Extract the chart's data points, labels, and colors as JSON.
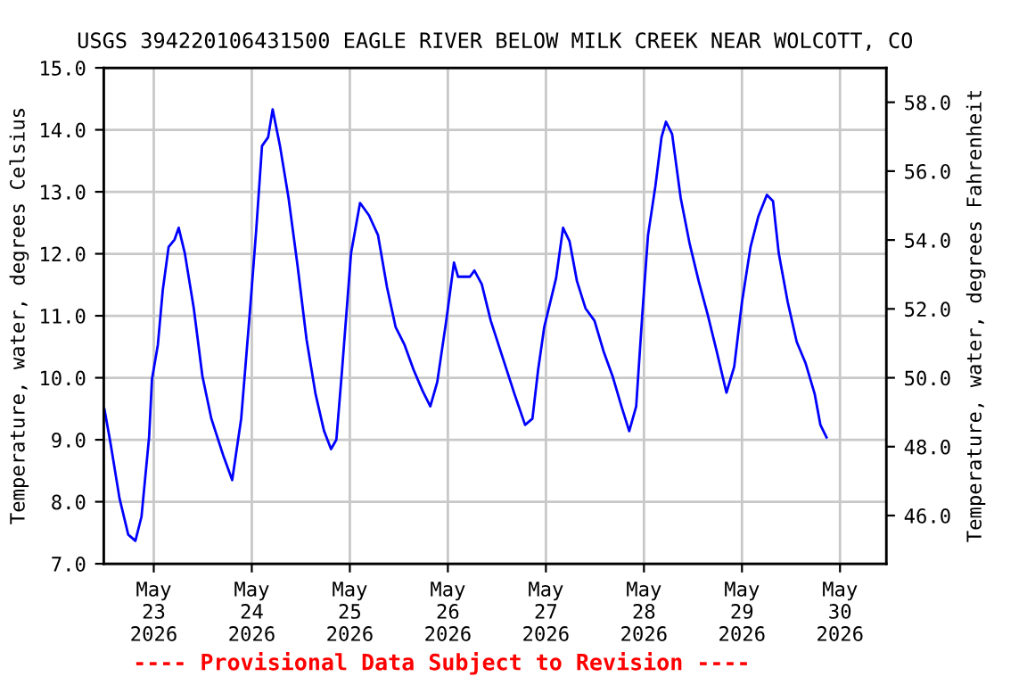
{
  "chart_data": {
    "type": "line",
    "title": "USGS 394220106431500 EAGLE RIVER BELOW MILK CREEK NEAR WOLCOTT, CO",
    "ylabel": "Temperature, water, degrees Celsius",
    "y2label": "Temperature, water, degrees Fahrenheit",
    "annotations": [
      "---- Provisional Data Subject to Revision ----"
    ],
    "x": [
      "2026-05-22T11:56",
      "2026-05-22T13:24",
      "2026-05-22T15:36",
      "2026-05-22T17:45",
      "2026-05-22T19:30",
      "2026-05-22T21:00",
      "2026-05-22T22:51",
      "2026-05-22T23:34",
      "2026-05-23T01:00",
      "2026-05-23T02:12",
      "2026-05-23T03:38",
      "2026-05-23T05:06",
      "2026-05-23T06:06",
      "2026-05-23T07:36",
      "2026-05-23T09:48",
      "2026-05-23T11:54",
      "2026-05-23T14:06",
      "2026-05-23T17:00",
      "2026-05-23T19:12",
      "2026-05-23T21:24",
      "2026-05-23T23:36",
      "2026-05-24T01:06",
      "2026-05-24T02:30",
      "2026-05-24T04:00",
      "2026-05-24T05:06",
      "2026-05-24T06:54",
      "2026-05-24T09:00",
      "2026-05-24T11:12",
      "2026-05-24T13:24",
      "2026-05-24T15:36",
      "2026-05-24T17:42",
      "2026-05-24T19:24",
      "2026-05-24T20:42",
      "2026-05-24T22:06",
      "2026-05-25T00:18",
      "2026-05-25T02:30",
      "2026-05-25T04:42",
      "2026-05-25T06:54",
      "2026-05-25T09:06",
      "2026-05-25T11:12",
      "2026-05-25T13:24",
      "2026-05-25T15:36",
      "2026-05-25T17:48",
      "2026-05-25T19:42",
      "2026-05-25T21:24",
      "2026-05-25T23:36",
      "2026-05-26T01:30",
      "2026-05-26T02:30",
      "2026-05-26T05:24",
      "2026-05-26T06:30",
      "2026-05-26T08:18",
      "2026-05-26T10:30",
      "2026-05-26T13:24",
      "2026-05-26T16:18",
      "2026-05-26T18:54",
      "2026-05-26T20:42",
      "2026-05-26T22:06",
      "2026-05-26T23:36",
      "2026-05-27T02:30",
      "2026-05-27T04:12",
      "2026-05-27T05:48",
      "2026-05-27T07:36",
      "2026-05-27T09:42",
      "2026-05-27T11:54",
      "2026-05-27T14:06",
      "2026-05-27T16:18",
      "2026-05-27T18:30",
      "2026-05-27T20:24",
      "2026-05-27T22:06",
      "2026-05-27T23:36",
      "2026-05-28T01:00",
      "2026-05-28T02:48",
      "2026-05-28T04:18",
      "2026-05-28T05:24",
      "2026-05-28T06:54",
      "2026-05-28T09:00",
      "2026-05-28T11:12",
      "2026-05-28T13:24",
      "2026-05-28T15:36",
      "2026-05-28T17:48",
      "2026-05-28T20:12",
      "2026-05-28T22:06",
      "2026-05-29T00:00",
      "2026-05-29T02:06",
      "2026-05-29T04:00",
      "2026-05-29T06:06",
      "2026-05-29T07:36",
      "2026-05-29T09:00",
      "2026-05-29T11:12",
      "2026-05-29T13:24",
      "2026-05-29T15:36",
      "2026-05-29T17:48",
      "2026-05-29T19:12",
      "2026-05-29T20:42"
    ],
    "series": [
      {
        "color": "#0000ff",
        "values": [
          9.49,
          8.95,
          8.06,
          7.47,
          7.37,
          7.76,
          9.04,
          9.98,
          10.53,
          11.41,
          12.11,
          12.23,
          12.42,
          12.01,
          11.12,
          10.03,
          9.34,
          8.75,
          8.35,
          9.34,
          11.12,
          12.4,
          13.74,
          13.88,
          14.33,
          13.74,
          12.9,
          11.81,
          10.62,
          9.74,
          9.14,
          8.85,
          9.0,
          10.13,
          12.01,
          12.82,
          12.62,
          12.3,
          11.46,
          10.82,
          10.53,
          10.13,
          9.79,
          9.54,
          9.93,
          10.92,
          11.86,
          11.63,
          11.63,
          11.73,
          11.51,
          10.92,
          10.33,
          9.74,
          9.24,
          9.34,
          10.13,
          10.82,
          11.61,
          12.42,
          12.2,
          11.56,
          11.12,
          10.92,
          10.43,
          10.03,
          9.54,
          9.14,
          9.54,
          11.02,
          12.3,
          13.09,
          13.88,
          14.13,
          13.93,
          12.9,
          12.16,
          11.56,
          11.02,
          10.43,
          9.76,
          10.18,
          11.22,
          12.11,
          12.6,
          12.95,
          12.85,
          12.01,
          11.22,
          10.58,
          10.23,
          9.74,
          9.24,
          9.04
        ]
      }
    ],
    "xlim": [
      "2026-05-22T11:45",
      "2026-05-30T11:20"
    ],
    "xticks": [
      {
        "value": "2026-05-23",
        "label": "May\n23\n2026"
      },
      {
        "value": "2026-05-24",
        "label": "May\n24\n2026"
      },
      {
        "value": "2026-05-25",
        "label": "May\n25\n2026"
      },
      {
        "value": "2026-05-26",
        "label": "May\n26\n2026"
      },
      {
        "value": "2026-05-27",
        "label": "May\n27\n2026"
      },
      {
        "value": "2026-05-28",
        "label": "May\n28\n2026"
      },
      {
        "value": "2026-05-29",
        "label": "May\n29\n2026"
      },
      {
        "value": "2026-05-30",
        "label": "May\n30\n2026"
      }
    ],
    "ylim": [
      7.0,
      15.0
    ],
    "yticks": [
      {
        "value": 7,
        "label": "7.0"
      },
      {
        "value": 8,
        "label": "8.0"
      },
      {
        "value": 9,
        "label": "9.0"
      },
      {
        "value": 10,
        "label": "10.0"
      },
      {
        "value": 11,
        "label": "11.0"
      },
      {
        "value": 12,
        "label": "12.0"
      },
      {
        "value": 13,
        "label": "13.0"
      },
      {
        "value": 14,
        "label": "14.0"
      },
      {
        "value": 15,
        "label": "15.0"
      }
    ],
    "y2lim": [
      44.6,
      59.0
    ],
    "y2ticks": [
      {
        "value": 46,
        "label": "46.0"
      },
      {
        "value": 48,
        "label": "48.0"
      },
      {
        "value": 50,
        "label": "50.0"
      },
      {
        "value": 52,
        "label": "52.0"
      },
      {
        "value": 54,
        "label": "54.0"
      },
      {
        "value": 56,
        "label": "56.0"
      },
      {
        "value": 58,
        "label": "58.0"
      }
    ],
    "grid": true,
    "legend": false,
    "line_style": "solid",
    "marker": "none"
  }
}
